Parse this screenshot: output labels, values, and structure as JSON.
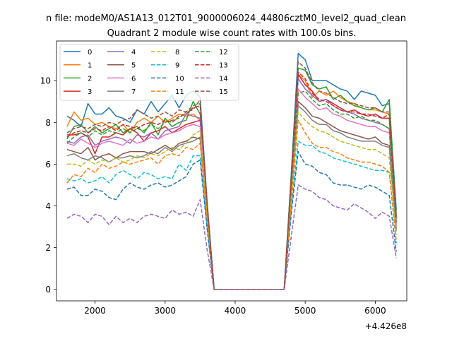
{
  "figure": {
    "suptitle": "n file: modeM0/AS1A13_012T01_9000006024_44806cztM0_level2_quad_clean",
    "title": "Quadrant 2 module wise count rates with 100.0s bins."
  },
  "chart_data": {
    "type": "line",
    "title": "Quadrant 2 module wise count rates with 100.0s bins.",
    "xlabel": "",
    "ylabel": "",
    "x_offset_label": "+4.426e8",
    "xlim": [
      1450,
      6450
    ],
    "ylim": [
      -0.55,
      11.9
    ],
    "xticks": [
      2000,
      3000,
      4000,
      5000,
      6000
    ],
    "yticks": [
      0,
      2,
      4,
      6,
      8,
      10
    ],
    "grid": false,
    "legend_position": "top-left",
    "legend_columns": 4,
    "x": [
      1600,
      1700,
      1800,
      1900,
      2000,
      2100,
      2200,
      2300,
      2400,
      2500,
      2600,
      2700,
      2800,
      2900,
      3000,
      3100,
      3200,
      3300,
      3400,
      3500,
      3600,
      3700,
      3800,
      3900,
      4000,
      4100,
      4200,
      4300,
      4400,
      4500,
      4600,
      4700,
      4800,
      4900,
      5000,
      5100,
      5200,
      5300,
      5400,
      5500,
      5600,
      5700,
      5800,
      5900,
      6000,
      6100,
      6200,
      6300
    ],
    "series": [
      {
        "name": "0",
        "color": "#1f77b4",
        "dashed": false,
        "values": [
          8.3,
          8.1,
          7.8,
          8.9,
          8.4,
          8.4,
          8.7,
          8.3,
          8.2,
          8.0,
          8.6,
          8.4,
          9.0,
          8.5,
          8.9,
          9.3,
          8.7,
          9.3,
          9.5,
          9.2,
          4.2,
          0,
          0,
          0,
          0,
          0,
          0,
          0,
          0,
          0,
          0,
          0,
          5.5,
          11.3,
          11.0,
          10.0,
          10.0,
          10.0,
          9.8,
          9.6,
          9.5,
          9.1,
          9.5,
          9.4,
          9.3,
          8.8,
          8.9,
          3.8
        ]
      },
      {
        "name": "1",
        "color": "#ff7f0e",
        "dashed": false,
        "values": [
          7.8,
          8.5,
          8.1,
          8.2,
          7.9,
          8.0,
          7.8,
          7.7,
          7.9,
          7.5,
          8.0,
          8.2,
          8.0,
          8.3,
          8.0,
          8.2,
          8.4,
          8.3,
          8.4,
          8.1,
          4.0,
          0,
          0,
          0,
          0,
          0,
          0,
          0,
          0,
          0,
          0,
          0,
          5.2,
          10.3,
          10.0,
          9.2,
          9.5,
          9.3,
          9.5,
          9.2,
          9.0,
          8.9,
          8.7,
          8.6,
          8.6,
          8.5,
          8.4,
          3.4
        ]
      },
      {
        "name": "2",
        "color": "#2ca02c",
        "dashed": false,
        "values": [
          7.2,
          7.8,
          7.9,
          7.5,
          7.8,
          7.5,
          7.7,
          7.9,
          7.5,
          7.7,
          7.8,
          7.5,
          8.0,
          7.4,
          8.2,
          7.8,
          8.0,
          8.1,
          9.0,
          8.4,
          4.0,
          0,
          0,
          0,
          0,
          0,
          0,
          0,
          0,
          0,
          0,
          0,
          5.3,
          10.6,
          10.5,
          9.8,
          9.6,
          9.7,
          9.1,
          9.3,
          9.0,
          8.8,
          8.7,
          8.6,
          8.7,
          8.5,
          9.1,
          3.6
        ]
      },
      {
        "name": "3",
        "color": "#d62728",
        "dashed": false,
        "values": [
          7.4,
          7.4,
          7.5,
          7.3,
          6.5,
          7.3,
          7.3,
          7.5,
          7.4,
          7.7,
          7.5,
          7.1,
          7.5,
          7.6,
          7.8,
          7.5,
          7.7,
          7.9,
          8.0,
          8.1,
          3.9,
          0,
          0,
          0,
          0,
          0,
          0,
          0,
          0,
          0,
          0,
          0,
          5.0,
          10.3,
          9.8,
          9.5,
          9.0,
          9.1,
          8.9,
          8.7,
          8.5,
          8.6,
          8.4,
          8.3,
          8.4,
          8.2,
          8.2,
          3.3
        ]
      },
      {
        "name": "4",
        "color": "#9467bd",
        "dashed": false,
        "values": [
          7.1,
          7.0,
          7.3,
          7.4,
          6.9,
          7.1,
          7.2,
          7.3,
          7.2,
          7.0,
          7.4,
          7.3,
          7.5,
          7.2,
          7.6,
          7.7,
          7.8,
          8.4,
          8.3,
          8.2,
          3.8,
          0,
          0,
          0,
          0,
          0,
          0,
          0,
          0,
          0,
          0,
          0,
          5.0,
          10.1,
          9.6,
          9.3,
          9.0,
          9.1,
          8.8,
          8.6,
          8.5,
          8.4,
          8.2,
          8.1,
          8.0,
          7.9,
          7.7,
          3.2
        ]
      },
      {
        "name": "5",
        "color": "#8c564b",
        "dashed": false,
        "values": [
          6.7,
          6.6,
          6.5,
          6.8,
          6.2,
          6.4,
          6.5,
          6.3,
          6.5,
          6.6,
          6.6,
          6.6,
          6.5,
          6.7,
          6.9,
          6.7,
          7.0,
          7.1,
          7.3,
          7.2,
          3.5,
          0,
          0,
          0,
          0,
          0,
          0,
          0,
          0,
          0,
          0,
          0,
          4.5,
          9.0,
          8.7,
          8.3,
          8.2,
          8.0,
          7.8,
          7.6,
          7.5,
          7.4,
          7.3,
          7.2,
          7.3,
          7.0,
          6.9,
          2.9
        ]
      },
      {
        "name": "6",
        "color": "#e377c2",
        "dashed": false,
        "values": [
          7.0,
          6.9,
          7.2,
          7.0,
          6.8,
          7.0,
          7.1,
          7.0,
          6.9,
          7.2,
          7.0,
          7.1,
          7.3,
          7.2,
          7.4,
          7.5,
          7.6,
          7.8,
          7.9,
          7.8,
          3.7,
          0,
          0,
          0,
          0,
          0,
          0,
          0,
          0,
          0,
          0,
          0,
          4.8,
          9.6,
          9.2,
          8.9,
          8.6,
          8.7,
          8.4,
          8.3,
          8.1,
          8.0,
          7.9,
          7.8,
          7.8,
          7.6,
          7.5,
          3.1
        ]
      },
      {
        "name": "7",
        "color": "#7f7f7f",
        "dashed": false,
        "values": [
          6.4,
          6.5,
          6.3,
          6.2,
          6.4,
          6.3,
          6.1,
          6.3,
          6.3,
          6.4,
          6.3,
          6.4,
          6.6,
          6.5,
          6.8,
          6.6,
          6.9,
          7.0,
          7.1,
          7.3,
          3.5,
          0,
          0,
          0,
          0,
          0,
          0,
          0,
          0,
          0,
          0,
          0,
          4.4,
          8.8,
          8.5,
          8.1,
          7.9,
          7.9,
          7.6,
          7.5,
          7.3,
          7.2,
          7.1,
          7.1,
          7.1,
          6.9,
          6.8,
          2.8
        ]
      },
      {
        "name": "8",
        "color": "#bcbd22",
        "dashed": true,
        "values": [
          6.0,
          6.0,
          5.9,
          6.2,
          6.0,
          6.2,
          6.1,
          6.3,
          6.1,
          6.2,
          6.4,
          6.3,
          6.5,
          6.4,
          6.6,
          6.8,
          6.7,
          7.0,
          7.4,
          7.6,
          3.6,
          0,
          0,
          0,
          0,
          0,
          0,
          0,
          0,
          0,
          0,
          0,
          4.3,
          8.5,
          8.1,
          7.8,
          7.6,
          7.5,
          7.3,
          7.1,
          7.0,
          6.9,
          6.8,
          6.7,
          6.7,
          6.5,
          6.3,
          2.6
        ]
      },
      {
        "name": "9",
        "color": "#17becf",
        "dashed": true,
        "values": [
          5.3,
          5.2,
          5.3,
          5.1,
          5.2,
          5.4,
          5.1,
          5.5,
          5.7,
          5.5,
          5.3,
          5.6,
          5.5,
          5.3,
          5.4,
          5.3,
          6.0,
          5.7,
          6.4,
          6.4,
          3.0,
          0,
          0,
          0,
          0,
          0,
          0,
          0,
          0,
          0,
          0,
          0,
          3.8,
          7.1,
          6.9,
          6.9,
          6.6,
          6.5,
          6.3,
          6.2,
          6.1,
          6.0,
          5.9,
          5.8,
          5.7,
          5.7,
          5.6,
          2.2
        ]
      },
      {
        "name": "10",
        "color": "#1f77b4",
        "dashed": true,
        "values": [
          4.8,
          4.9,
          4.5,
          4.5,
          4.8,
          4.7,
          4.4,
          4.3,
          4.8,
          5.1,
          4.9,
          4.8,
          5.0,
          5.1,
          4.9,
          5.0,
          5.2,
          5.4,
          6.0,
          6.2,
          2.9,
          0,
          0,
          0,
          0,
          0,
          0,
          0,
          0,
          0,
          0,
          0,
          3.6,
          6.6,
          6.0,
          5.9,
          5.6,
          5.5,
          5.1,
          5.0,
          5.0,
          4.9,
          4.8,
          5.0,
          4.9,
          4.7,
          4.5,
          1.8
        ]
      },
      {
        "name": "11",
        "color": "#ff7f0e",
        "dashed": true,
        "values": [
          5.1,
          5.5,
          5.4,
          5.8,
          5.6,
          6.0,
          5.8,
          5.9,
          6.1,
          6.0,
          6.1,
          6.2,
          6.3,
          6.0,
          6.4,
          6.5,
          6.4,
          6.8,
          6.7,
          7.0,
          3.4,
          0,
          0,
          0,
          0,
          0,
          0,
          0,
          0,
          0,
          0,
          0,
          4.1,
          8.1,
          7.5,
          7.0,
          6.8,
          6.8,
          6.6,
          6.5,
          6.3,
          6.2,
          6.1,
          6.1,
          6.0,
          5.9,
          5.6,
          2.3
        ]
      },
      {
        "name": "12",
        "color": "#2ca02c",
        "dashed": true,
        "values": [
          7.0,
          7.3,
          7.5,
          7.3,
          7.6,
          7.4,
          7.6,
          7.5,
          7.7,
          7.5,
          7.7,
          7.6,
          7.9,
          7.7,
          8.0,
          8.1,
          8.2,
          8.5,
          8.8,
          8.9,
          4.1,
          0,
          0,
          0,
          0,
          0,
          0,
          0,
          0,
          0,
          0,
          0,
          5.1,
          9.4,
          9.5,
          9.1,
          8.8,
          8.9,
          8.6,
          8.4,
          8.4,
          8.2,
          8.3,
          8.1,
          8.1,
          7.9,
          7.7,
          3.2
        ]
      },
      {
        "name": "13",
        "color": "#d62728",
        "dashed": true,
        "values": [
          7.3,
          7.5,
          7.6,
          7.5,
          7.7,
          7.6,
          7.8,
          7.6,
          7.9,
          7.8,
          7.7,
          7.9,
          8.0,
          7.9,
          8.1,
          8.0,
          8.3,
          8.4,
          8.7,
          8.8,
          4.1,
          0,
          0,
          0,
          0,
          0,
          0,
          0,
          0,
          0,
          0,
          0,
          5.2,
          10.4,
          10.1,
          9.4,
          9.1,
          9.0,
          8.8,
          8.6,
          8.5,
          8.5,
          8.4,
          8.4,
          8.3,
          8.2,
          8.4,
          3.4
        ]
      },
      {
        "name": "14",
        "color": "#9467bd",
        "dashed": true,
        "values": [
          3.4,
          3.6,
          3.5,
          3.2,
          3.6,
          3.5,
          3.1,
          3.5,
          3.2,
          3.4,
          3.2,
          3.5,
          3.6,
          3.5,
          3.4,
          3.8,
          3.6,
          3.7,
          3.5,
          4.3,
          1.9,
          0,
          0,
          0,
          0,
          0,
          0,
          0,
          0,
          0,
          0,
          0,
          2.5,
          5.0,
          4.8,
          4.7,
          4.4,
          4.3,
          4.0,
          3.9,
          3.8,
          4.1,
          3.9,
          3.7,
          3.4,
          3.7,
          3.5,
          1.5
        ]
      },
      {
        "name": "15",
        "color": "#8c564b",
        "dashed": true,
        "values": [
          7.5,
          7.7,
          7.8,
          7.7,
          7.9,
          7.8,
          8.0,
          7.9,
          8.1,
          8.2,
          8.6,
          8.4,
          8.2,
          8.3,
          8.5,
          8.3,
          8.6,
          8.5,
          8.6,
          9.1,
          4.1,
          0,
          0,
          0,
          0,
          0,
          0,
          0,
          0,
          0,
          0,
          0,
          5.4,
          10.9,
          10.6,
          9.9,
          9.5,
          9.4,
          9.2,
          9.0,
          8.9,
          8.9,
          8.8,
          8.7,
          8.7,
          8.5,
          8.5,
          3.5
        ]
      }
    ]
  }
}
